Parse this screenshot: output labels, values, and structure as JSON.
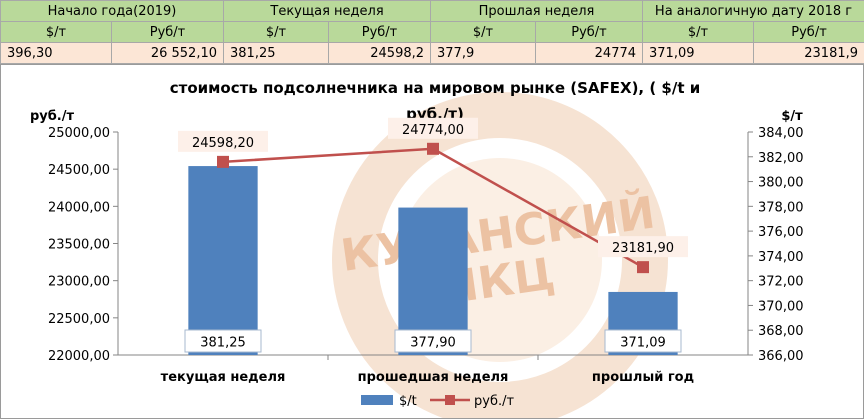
{
  "table": {
    "headers": [
      "Начало года(2019)",
      "Текущая неделя",
      "Прошлая неделя",
      "На аналогичную дату 2018 г"
    ],
    "units": [
      "$/т",
      "Руб/т",
      "$/т",
      "Руб/т",
      "$/т",
      "Руб/т",
      "$/т",
      "Руб/т"
    ],
    "values": [
      "396,30",
      "26 552,10",
      "381,25",
      "24598,2",
      "377,9",
      "24774",
      "371,09",
      "23181,9"
    ]
  },
  "watermark": {
    "line1": "КУБАНСКИЙ",
    "line2": "ИКЦ"
  },
  "chart_data": {
    "type": "bar",
    "title": "стоимость подсолнечника на мировом рынке (SAFEX), ( $/t и руб./т)",
    "title_line1": "стоимость подсолнечника на мировом рынке (SAFEX), ( $/t и",
    "title_line2": "руб./т)",
    "ylabel": "руб./т",
    "y2label": "$/т",
    "categories": [
      "текущая неделя",
      "прошедшая неделя",
      "прошлый год"
    ],
    "ylim": [
      22000,
      25000
    ],
    "y2lim": [
      366,
      384
    ],
    "yticks": [
      "22000,00",
      "22500,00",
      "23000,00",
      "23500,00",
      "24000,00",
      "24500,00",
      "25000,00"
    ],
    "y2ticks": [
      "366,00",
      "368,00",
      "370,00",
      "372,00",
      "374,00",
      "376,00",
      "378,00",
      "380,00",
      "382,00",
      "384,00"
    ],
    "grid": false,
    "legend_position": "bottom",
    "series": [
      {
        "name": "$/t",
        "kind": "bar",
        "axis": "right",
        "color": "#4f81bd",
        "values": [
          381.25,
          377.9,
          371.09
        ],
        "labels": [
          "381,25",
          "377,90",
          "371,09"
        ]
      },
      {
        "name": "руб./т",
        "kind": "line",
        "axis": "left",
        "color": "#c0504d",
        "values": [
          24598.2,
          24774.0,
          23181.9
        ],
        "labels": [
          "24598,20",
          "24774,00",
          "23181,90"
        ]
      }
    ]
  }
}
